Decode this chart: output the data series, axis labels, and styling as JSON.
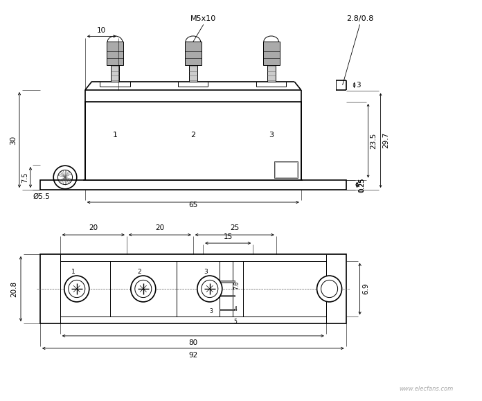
{
  "bg_color": "#ffffff",
  "line_color": "#000000",
  "watermark": "www.elecfans.com",
  "fig_width": 6.96,
  "fig_height": 5.79,
  "dpi": 100
}
